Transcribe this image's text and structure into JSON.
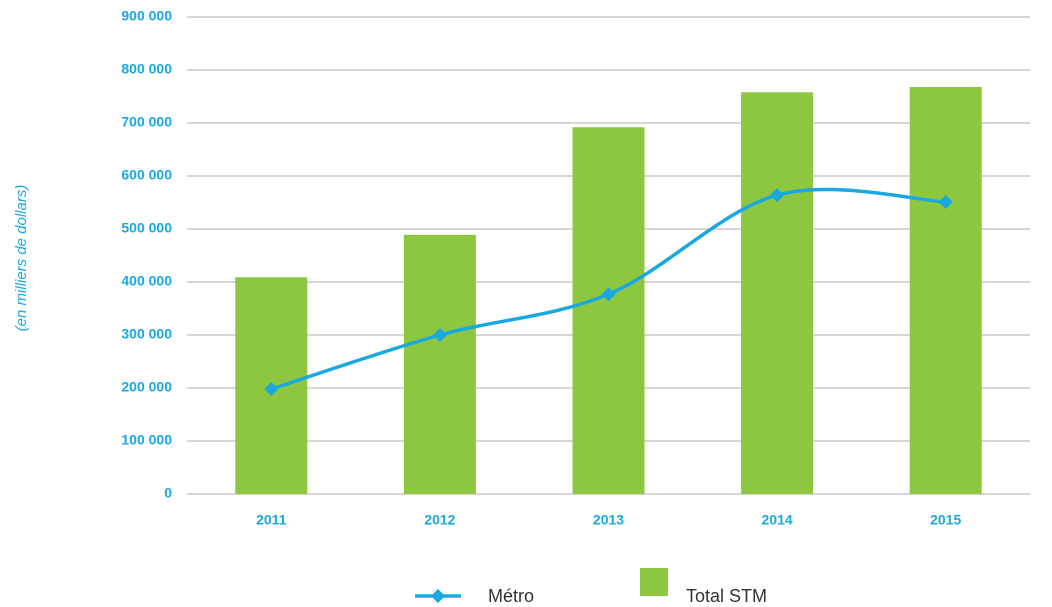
{
  "chart_data": {
    "type": "bar",
    "y_label": "(en milliers de dollars)",
    "categories": [
      "2011",
      "2012",
      "2013",
      "2014",
      "2015"
    ],
    "series": [
      {
        "name": "Métro",
        "type": "line",
        "color": "#1aa8e0",
        "values": [
          198000,
          300000,
          377000,
          564000,
          551000
        ]
      },
      {
        "name": "Total STM",
        "type": "bar",
        "color": "#8dc63f",
        "values": [
          409000,
          489000,
          692000,
          758000,
          768000
        ]
      }
    ],
    "ylim": [
      0,
      900000
    ],
    "yticks": [
      {
        "value": 0,
        "label": "0"
      },
      {
        "value": 100000,
        "label": "100 000"
      },
      {
        "value": 200000,
        "label": "200 000"
      },
      {
        "value": 300000,
        "label": "300 000"
      },
      {
        "value": 400000,
        "label": "400 000"
      },
      {
        "value": 500000,
        "label": "500 000"
      },
      {
        "value": 600000,
        "label": "600 000"
      },
      {
        "value": 700000,
        "label": "700 000"
      },
      {
        "value": 800000,
        "label": "800 000"
      },
      {
        "value": 900000,
        "label": "900 000"
      }
    ],
    "grid": true
  }
}
